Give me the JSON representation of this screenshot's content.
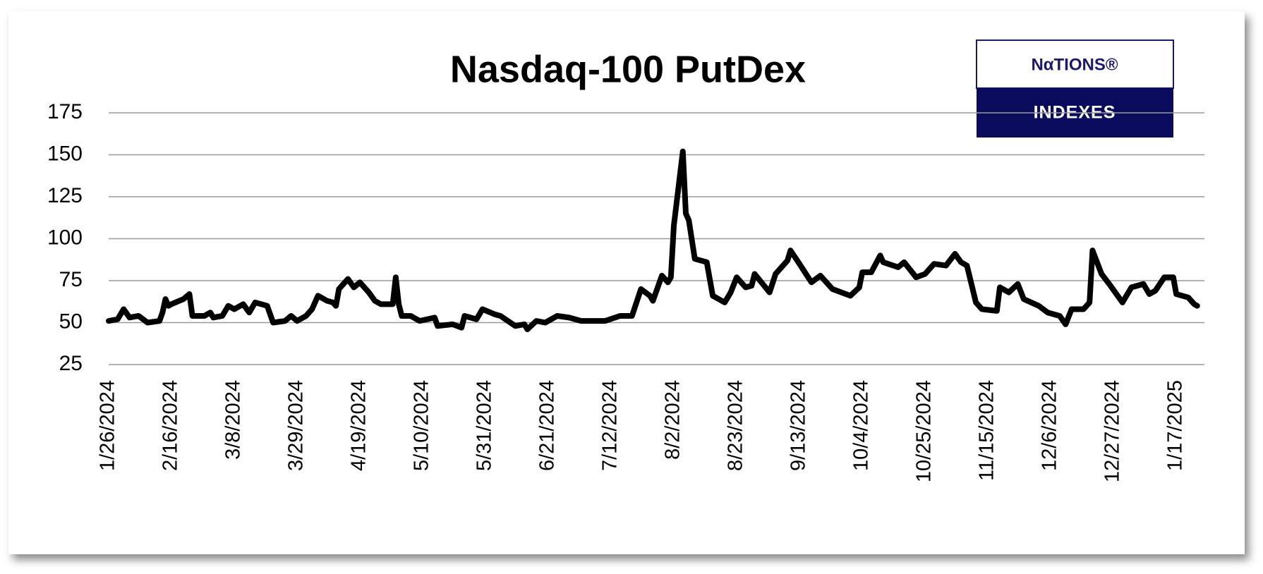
{
  "chart_data": {
    "type": "line",
    "title": "Nasdaq-100  PutDex",
    "logo": {
      "top": "NαTIONS®",
      "bottom": "INDEXES"
    },
    "x": [
      "1/26/2024",
      "1/29/2024",
      "1/31/2024",
      "2/2/2024",
      "2/5/2024",
      "2/8/2024",
      "2/12/2024",
      "2/13/2024",
      "2/14/2024",
      "2/15/2024",
      "2/16/2024",
      "2/20/2024",
      "2/22/2024",
      "2/23/2024",
      "2/27/2024",
      "2/29/2024",
      "3/1/2024",
      "3/4/2024",
      "3/6/2024",
      "3/8/2024",
      "3/11/2024",
      "3/13/2024",
      "3/15/2024",
      "3/19/2024",
      "3/21/2024",
      "3/25/2024",
      "3/27/2024",
      "3/29/2024",
      "4/1/2024",
      "4/3/2024",
      "4/5/2024",
      "4/8/2024",
      "4/10/2024",
      "4/11/2024",
      "4/12/2024",
      "4/15/2024",
      "4/17/2024",
      "4/19/2024",
      "4/22/2024",
      "4/24/2024",
      "4/26/2024",
      "4/30/2024",
      "5/1/2024",
      "5/2/2024",
      "5/3/2024",
      "5/6/2024",
      "5/9/2024",
      "5/14/2024",
      "5/15/2024",
      "5/20/2024",
      "5/23/2024",
      "5/24/2024",
      "5/28/2024",
      "5/30/2024",
      "6/3/2024",
      "6/5/2024",
      "6/10/2024",
      "6/13/2024",
      "6/14/2024",
      "6/17/2024",
      "6/20/2024",
      "6/24/2024",
      "6/28/2024",
      "7/2/2024",
      "7/10/2024",
      "7/15/2024",
      "7/19/2024",
      "7/22/2024",
      "7/25/2024",
      "7/26/2024",
      "7/29/2024",
      "7/31/2024",
      "8/1/2024",
      "8/2/2024",
      "8/5/2024",
      "8/6/2024",
      "8/7/2024",
      "8/9/2024",
      "8/13/2024",
      "8/15/2024",
      "8/19/2024",
      "8/21/2024",
      "8/23/2024",
      "8/26/2024",
      "8/28/2024",
      "8/29/2024",
      "9/3/2024",
      "9/5/2024",
      "9/9/2024",
      "9/10/2024",
      "9/13/2024",
      "9/17/2024",
      "9/20/2024",
      "9/24/2024",
      "9/30/2024",
      "10/3/2024",
      "10/4/2024",
      "10/7/2024",
      "10/10/2024",
      "10/11/2024",
      "10/16/2024",
      "10/18/2024",
      "10/22/2024",
      "10/25/2024",
      "10/28/2024",
      "11/1/2024",
      "11/4/2024",
      "11/6/2024",
      "11/8/2024",
      "11/11/2024",
      "11/13/2024",
      "11/18/2024",
      "11/19/2024",
      "11/22/2024",
      "11/25/2024",
      "11/27/2024",
      "12/2/2024",
      "12/5/2024",
      "12/9/2024",
      "12/11/2024",
      "12/13/2024",
      "12/17/2024",
      "12/19/2024",
      "12/20/2024",
      "12/23/2024",
      "12/26/2024",
      "12/30/2024",
      "1/2/2025",
      "1/6/2025",
      "1/8/2025",
      "1/10/2025",
      "1/13/2025",
      "1/16/2025",
      "1/17/2025",
      "1/21/2025",
      "1/23/2025",
      "1/24/2025"
    ],
    "series": [
      {
        "name": "PutDex",
        "color": "#000000",
        "values": [
          51,
          52,
          58,
          53,
          54,
          50,
          51,
          56,
          64,
          60,
          61,
          64,
          67,
          54,
          54,
          56,
          53,
          54,
          60,
          58,
          61,
          56,
          62,
          60,
          50,
          51,
          54,
          51,
          54,
          58,
          66,
          63,
          62,
          60,
          70,
          76,
          71,
          74,
          68,
          63,
          61,
          61,
          77,
          61,
          54,
          54,
          51,
          53,
          48,
          49,
          47,
          54,
          52,
          58,
          55,
          54,
          48,
          49,
          46,
          51,
          50,
          54,
          53,
          51,
          51,
          54,
          54,
          70,
          66,
          63,
          78,
          74,
          77,
          108,
          152,
          115,
          111,
          88,
          86,
          66,
          62,
          68,
          77,
          71,
          72,
          79,
          68,
          79,
          87,
          93,
          85,
          74,
          78,
          70,
          66,
          71,
          80,
          80,
          90,
          86,
          83,
          86,
          77,
          79,
          85,
          84,
          91,
          86,
          84,
          62,
          58,
          57,
          71,
          68,
          73,
          64,
          60,
          56,
          54,
          49,
          58,
          58,
          62,
          93,
          79,
          72,
          62,
          71,
          73,
          67,
          69,
          77,
          77,
          67,
          65,
          61,
          60
        ]
      }
    ],
    "xlim": [
      "1/26/2024",
      "1/25/2025"
    ],
    "xticks": [
      "1/26/2024",
      "2/16/2024",
      "3/8/2024",
      "3/29/2024",
      "4/19/2024",
      "5/10/2024",
      "5/31/2024",
      "6/21/2024",
      "7/12/2024",
      "8/2/2024",
      "8/23/2024",
      "9/13/2024",
      "10/4/2024",
      "10/25/2024",
      "11/15/2024",
      "12/6/2024",
      "12/27/2024",
      "1/17/2025"
    ],
    "ylim": [
      25,
      175
    ],
    "yticks": [
      25,
      50,
      75,
      100,
      125,
      150,
      175
    ],
    "grid": true
  }
}
